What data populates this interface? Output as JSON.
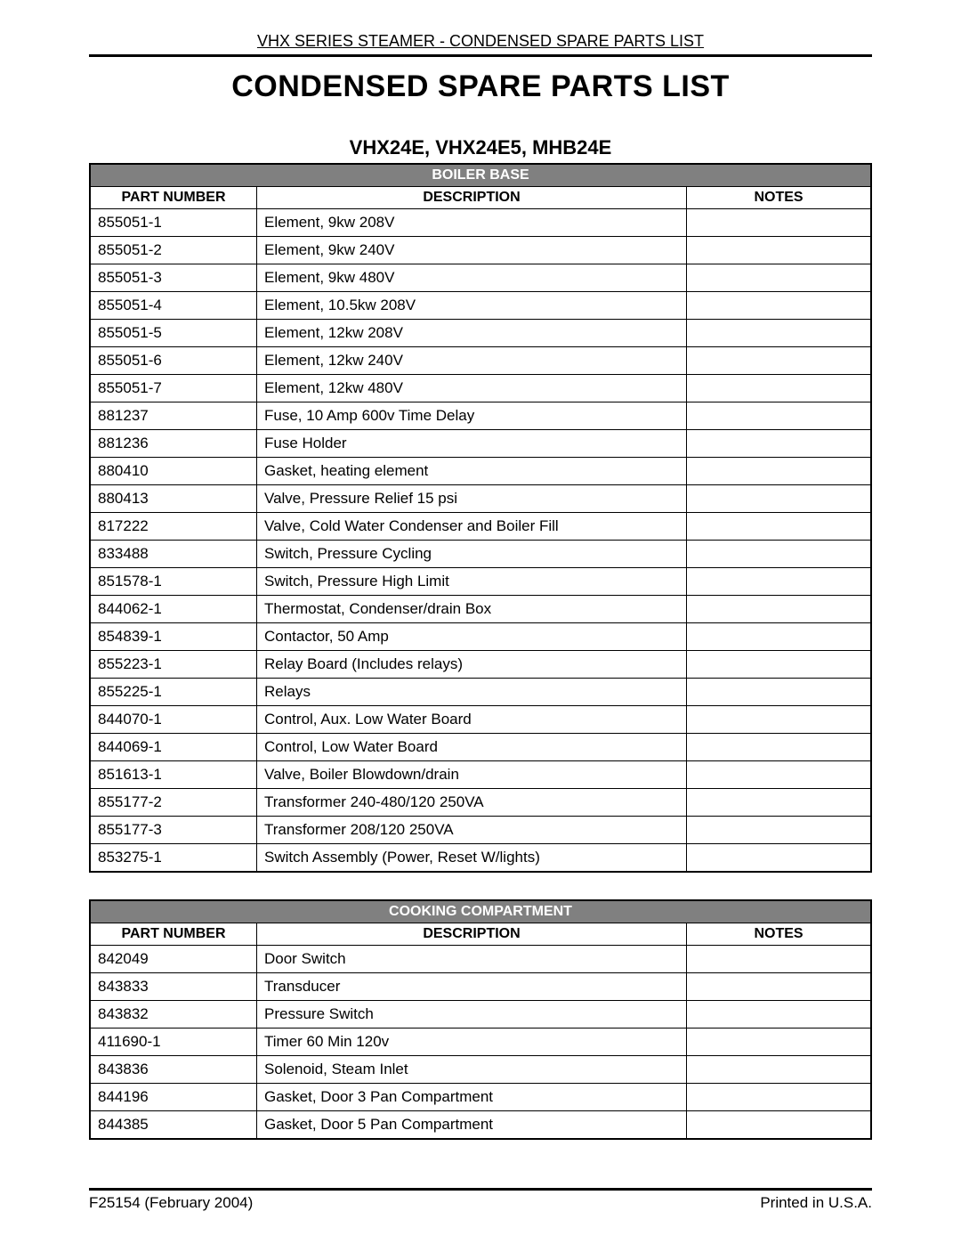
{
  "header": "VHX SERIES STEAMER - CONDENSED SPARE PARTS LIST",
  "title": "CONDENSED SPARE PARTS LIST",
  "model": "VHX24E, VHX24E5, MHB24E",
  "columns": {
    "part": "PART NUMBER",
    "desc": "DESCRIPTION",
    "notes": "NOTES"
  },
  "tables": [
    {
      "section": "BOILER BASE",
      "rows": [
        {
          "part": "855051-1",
          "desc": "Element, 9kw 208V",
          "notes": ""
        },
        {
          "part": "855051-2",
          "desc": "Element, 9kw 240V",
          "notes": ""
        },
        {
          "part": "855051-3",
          "desc": "Element, 9kw 480V",
          "notes": ""
        },
        {
          "part": "855051-4",
          "desc": "Element, 10.5kw 208V",
          "notes": ""
        },
        {
          "part": "855051-5",
          "desc": "Element, 12kw 208V",
          "notes": ""
        },
        {
          "part": "855051-6",
          "desc": "Element, 12kw 240V",
          "notes": ""
        },
        {
          "part": "855051-7",
          "desc": "Element, 12kw 480V",
          "notes": ""
        },
        {
          "part": "881237",
          "desc": "Fuse, 10 Amp  600v Time Delay",
          "notes": ""
        },
        {
          "part": "881236",
          "desc": "Fuse Holder",
          "notes": ""
        },
        {
          "part": "880410",
          "desc": "Gasket, heating element",
          "notes": ""
        },
        {
          "part": "880413",
          "desc": "Valve, Pressure Relief 15 psi",
          "notes": ""
        },
        {
          "part": "817222",
          "desc": "Valve, Cold Water Condenser and Boiler Fill",
          "notes": ""
        },
        {
          "part": "833488",
          "desc": "Switch, Pressure Cycling",
          "notes": ""
        },
        {
          "part": "851578-1",
          "desc": "Switch, Pressure High Limit",
          "notes": ""
        },
        {
          "part": "844062-1",
          "desc": "Thermostat, Condenser/drain Box",
          "notes": ""
        },
        {
          "part": "854839-1",
          "desc": "Contactor, 50 Amp",
          "notes": ""
        },
        {
          "part": "855223-1",
          "desc": "Relay Board (Includes relays)",
          "notes": ""
        },
        {
          "part": "855225-1",
          "desc": "Relays",
          "notes": ""
        },
        {
          "part": "844070-1",
          "desc": "Control, Aux. Low Water Board",
          "notes": ""
        },
        {
          "part": "844069-1",
          "desc": "Control, Low Water Board",
          "notes": ""
        },
        {
          "part": "851613-1",
          "desc": "Valve, Boiler Blowdown/drain",
          "notes": ""
        },
        {
          "part": "855177-2",
          "desc": "Transformer 240-480/120  250VA",
          "notes": ""
        },
        {
          "part": "855177-3",
          "desc": "Transformer 208/120  250VA",
          "notes": ""
        },
        {
          "part": "853275-1",
          "desc": "Switch Assembly (Power, Reset W/lights)",
          "notes": ""
        }
      ]
    },
    {
      "section": "COOKING COMPARTMENT",
      "rows": [
        {
          "part": "842049",
          "desc": "Door Switch",
          "notes": ""
        },
        {
          "part": "843833",
          "desc": "Transducer",
          "notes": ""
        },
        {
          "part": "843832",
          "desc": "Pressure Switch",
          "notes": ""
        },
        {
          "part": "411690-1",
          "desc": "Timer 60 Min 120v",
          "notes": ""
        },
        {
          "part": "843836",
          "desc": "Solenoid, Steam Inlet",
          "notes": ""
        },
        {
          "part": "844196",
          "desc": "Gasket, Door 3 Pan Compartment",
          "notes": ""
        },
        {
          "part": "844385",
          "desc": "Gasket, Door 5 Pan Compartment",
          "notes": ""
        }
      ]
    }
  ],
  "footer": {
    "left": "F25154 (February 2004)",
    "right": "Printed in U.S.A."
  }
}
